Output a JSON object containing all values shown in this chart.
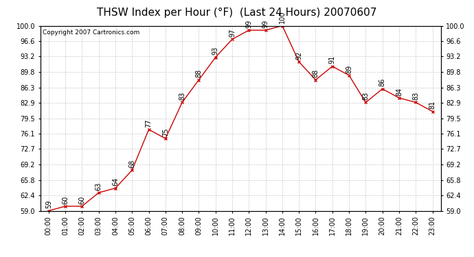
{
  "title": "THSW Index per Hour (°F)  (Last 24 Hours) 20070607",
  "copyright": "Copyright 2007 Cartronics.com",
  "hours": [
    "00:00",
    "01:00",
    "02:00",
    "03:00",
    "04:00",
    "05:00",
    "06:00",
    "07:00",
    "08:00",
    "09:00",
    "10:00",
    "11:00",
    "12:00",
    "13:00",
    "14:00",
    "15:00",
    "16:00",
    "17:00",
    "18:00",
    "19:00",
    "20:00",
    "21:00",
    "22:00",
    "23:00"
  ],
  "data_hours": [
    0,
    1,
    2,
    3,
    4,
    5,
    6,
    7,
    8,
    9,
    10,
    11,
    12,
    13,
    14,
    15,
    16,
    17,
    18,
    19,
    20,
    21,
    22,
    23
  ],
  "data_values": [
    59,
    60,
    60,
    63,
    64,
    68,
    77,
    75,
    83,
    88,
    93,
    97,
    99,
    99,
    100,
    92,
    88,
    91,
    89,
    83,
    86,
    84,
    83,
    81
  ],
  "yticks": [
    59.0,
    62.4,
    65.8,
    69.2,
    72.7,
    76.1,
    79.5,
    82.9,
    86.3,
    89.8,
    93.2,
    96.6,
    100.0
  ],
  "line_color": "#cc0000",
  "marker_color": "#cc0000",
  "bg_color": "#ffffff",
  "plot_bg_color": "#ffffff",
  "grid_color": "#bbbbbb",
  "title_fontsize": 11,
  "copyright_fontsize": 6.5,
  "label_fontsize": 7,
  "tick_fontsize": 7
}
